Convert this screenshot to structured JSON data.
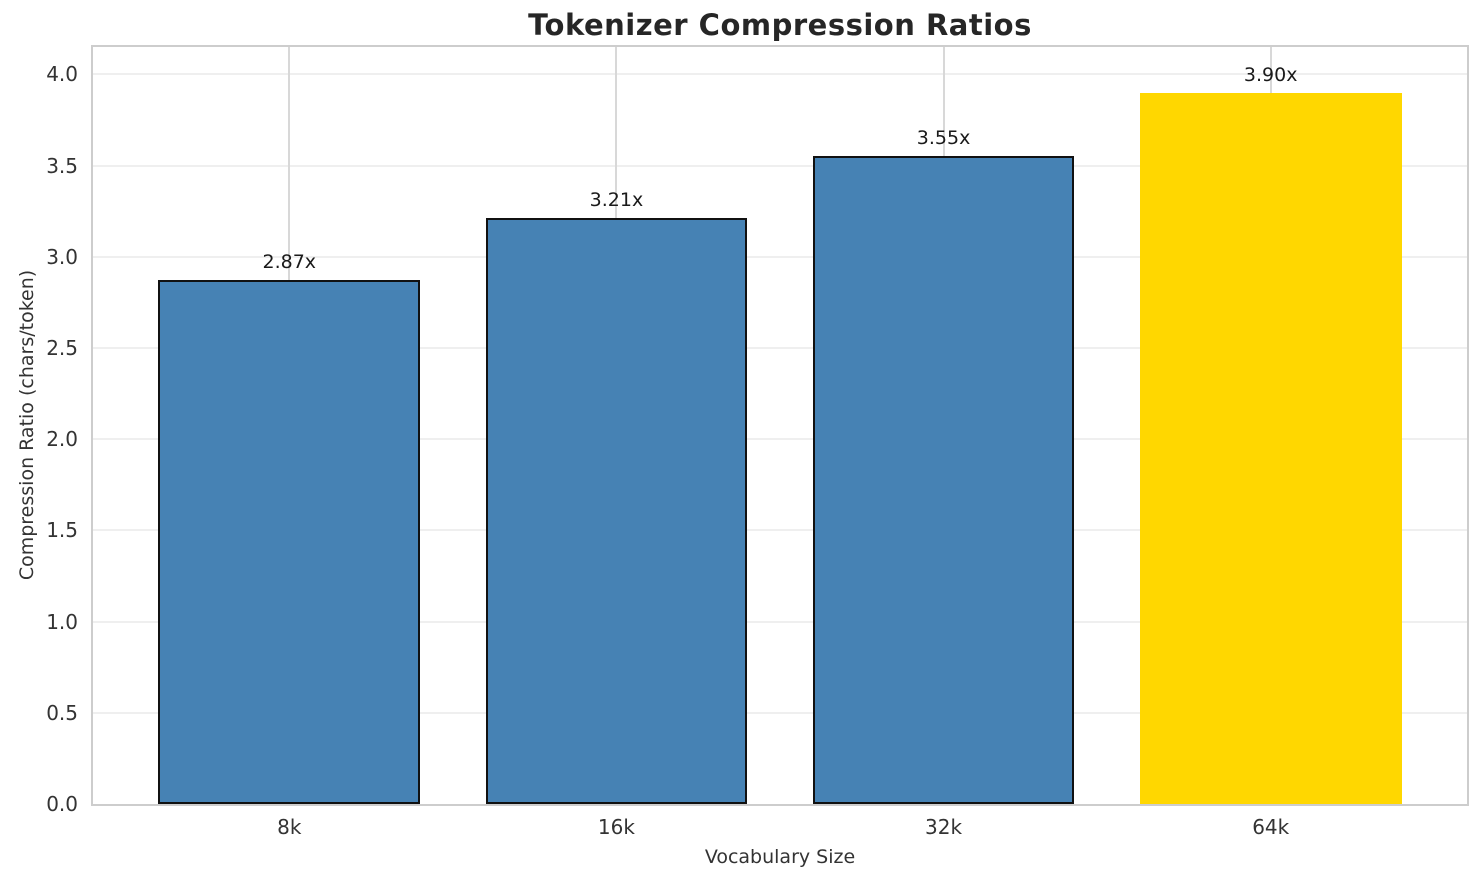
{
  "chart_data": {
    "type": "bar",
    "title": "Tokenizer Compression Ratios",
    "xlabel": "Vocabulary Size",
    "ylabel": "Compression Ratio (chars/token)",
    "categories": [
      "8k",
      "16k",
      "32k",
      "64k"
    ],
    "values": [
      2.87,
      3.21,
      3.55,
      3.9
    ],
    "bar_labels": [
      "2.87x",
      "3.21x",
      "3.55x",
      "3.90x"
    ],
    "bar_colors": [
      "#4682b4",
      "#4682b4",
      "#4682b4",
      "#ffd700"
    ],
    "bar_edge_colors": [
      "#111111",
      "#111111",
      "#111111",
      "none"
    ],
    "ylim": [
      0,
      4.15
    ],
    "yticks": [
      0.0,
      0.5,
      1.0,
      1.5,
      2.0,
      2.5,
      3.0,
      3.5,
      4.0
    ],
    "ytick_labels": [
      "0.0",
      "0.5",
      "1.0",
      "1.5",
      "2.0",
      "2.5",
      "3.0",
      "3.5",
      "4.0"
    ],
    "grid": "both",
    "legend": "none",
    "background_color": "#ffffff",
    "accent_colors": {
      "bar": "#4682b4",
      "highlight": "#ffd700",
      "grid_horizontal": "#efefef",
      "grid_vertical": "#d8d8d8",
      "spine": "#cdcdcd"
    }
  }
}
